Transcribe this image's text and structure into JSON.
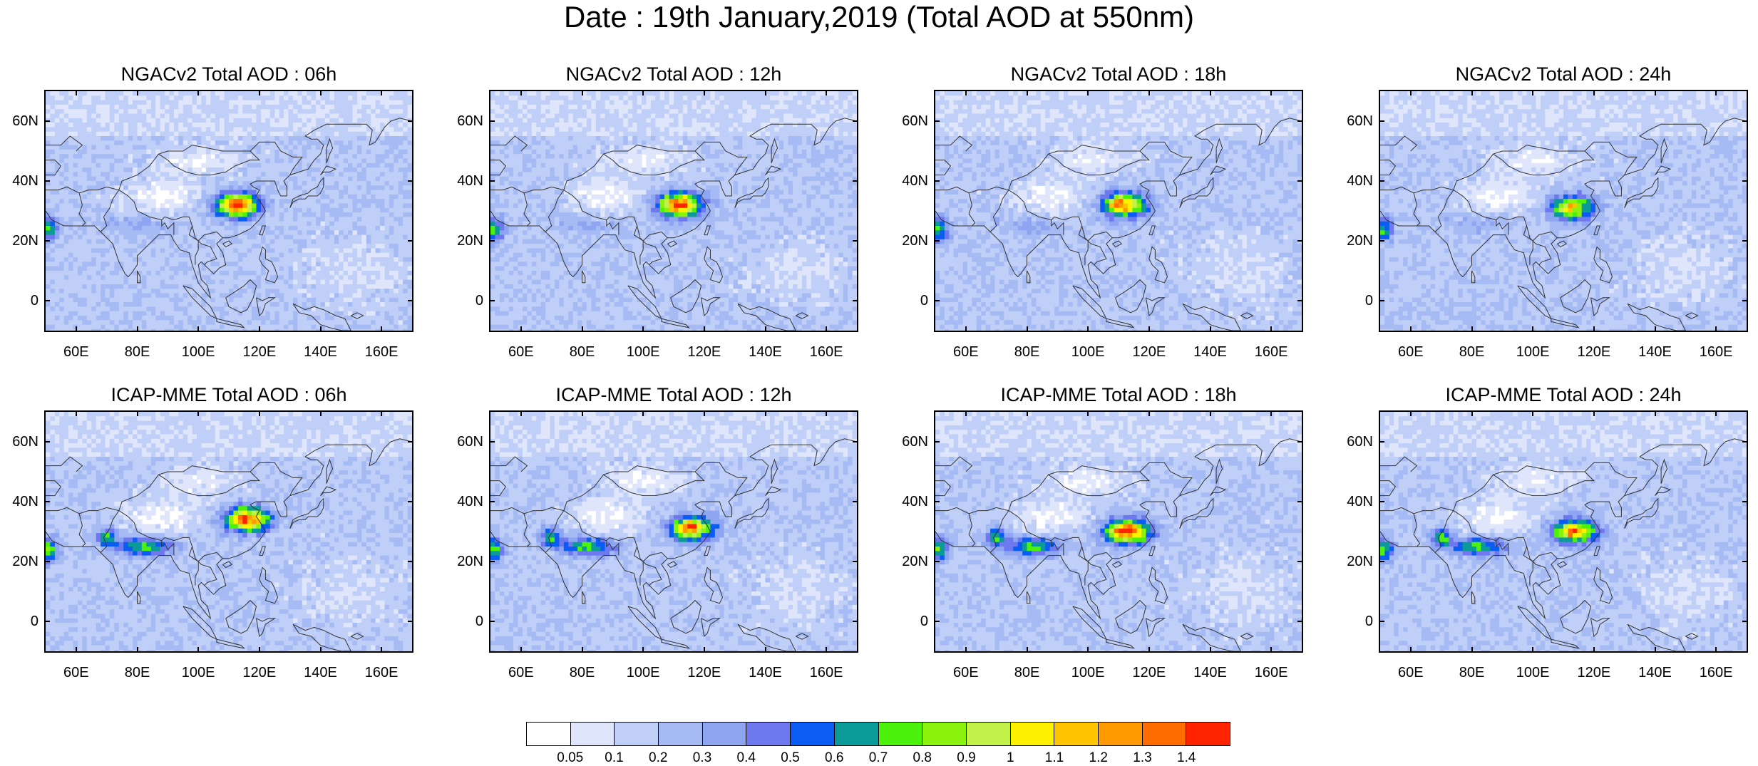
{
  "title": "Date : 19th January,2019 (Total AOD at 550nm)",
  "x_tick_labels": [
    "60E",
    "80E",
    "100E",
    "120E",
    "140E",
    "160E"
  ],
  "y_tick_labels": [
    "60N",
    "40N",
    "20N",
    "0"
  ],
  "lon_range": [
    50,
    170
  ],
  "lat_range": [
    -10,
    70
  ],
  "panels": [
    {
      "title": "NGACv2 Total AOD : 06h",
      "model": "NGACv2",
      "hour": "06h",
      "peak_level": 13,
      "hotspot": [
        113,
        32
      ]
    },
    {
      "title": "NGACv2 Total AOD : 12h",
      "model": "NGACv2",
      "hour": "12h",
      "peak_level": 13,
      "hotspot": [
        112,
        32
      ]
    },
    {
      "title": "NGACv2 Total AOD : 18h",
      "model": "NGACv2",
      "hour": "18h",
      "peak_level": 12,
      "hotspot": [
        112,
        32
      ]
    },
    {
      "title": "NGACv2 Total AOD : 24h",
      "model": "NGACv2",
      "hour": "24h",
      "peak_level": 10,
      "hotspot": [
        113,
        31
      ]
    },
    {
      "title": "ICAP-MME Total AOD : 06h",
      "model": "ICAP-MME",
      "hour": "06h",
      "peak_level": 13,
      "hotspot": [
        116,
        34
      ]
    },
    {
      "title": "ICAP-MME Total AOD : 12h",
      "model": "ICAP-MME",
      "hour": "12h",
      "peak_level": 12,
      "hotspot": [
        116,
        31
      ]
    },
    {
      "title": "ICAP-MME Total AOD : 18h",
      "model": "ICAP-MME",
      "hour": "18h",
      "peak_level": 13,
      "hotspot": [
        113,
        30
      ]
    },
    {
      "title": "ICAP-MME Total AOD : 24h",
      "model": "ICAP-MME",
      "hour": "24h",
      "peak_level": 11,
      "hotspot": [
        114,
        30
      ]
    }
  ],
  "colorbar": {
    "levels": [
      "0.05",
      "0.1",
      "0.2",
      "0.3",
      "0.4",
      "0.5",
      "0.6",
      "0.7",
      "0.8",
      "0.9",
      "1",
      "1.1",
      "1.2",
      "1.3",
      "1.4"
    ],
    "colors": [
      "#ffffff",
      "#dfe6fb",
      "#c0cff7",
      "#a6bbf4",
      "#8ea5f2",
      "#6e79ef",
      "#0b5cf2",
      "#0c9a98",
      "#4cf20c",
      "#8af20c",
      "#c2f24a",
      "#fff200",
      "#ffc600",
      "#ff9a00",
      "#ff6d00",
      "#ff2400"
    ]
  }
}
